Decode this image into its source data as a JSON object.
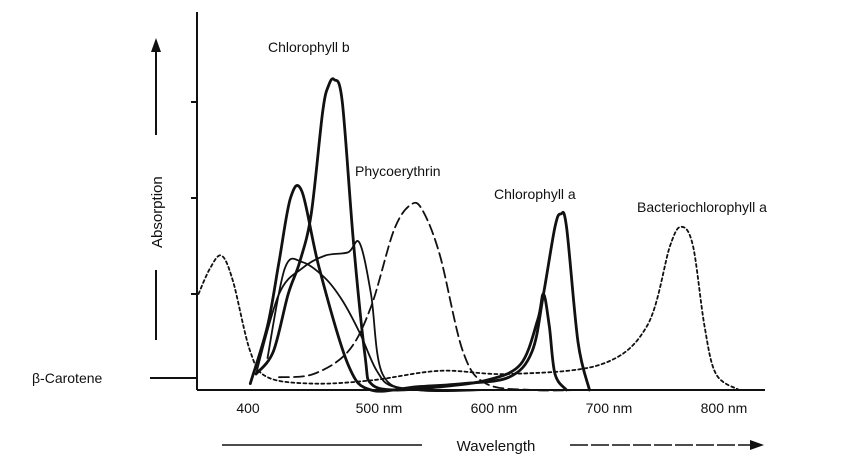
{
  "chart_data": {
    "type": "line",
    "title": "",
    "xlabel": "Wavelength",
    "ylabel": "Absorption",
    "x_ticks": [
      "400",
      "500 nm",
      "600 nm",
      "700 nm",
      "800 nm"
    ],
    "x_tick_values": [
      400,
      500,
      600,
      700,
      800
    ],
    "xlim": [
      350,
      900
    ],
    "ylim": [
      0,
      1
    ],
    "y_units": "relative absorption (axis unlabeled)",
    "y_tick_values": [
      0.3,
      0.6,
      0.9
    ],
    "grid": false,
    "legend": "none (curves labeled directly)",
    "series": [
      {
        "name": "Chlorophyll b",
        "style": "solid",
        "x": [
          400,
          415,
          428,
          438,
          448,
          458,
          463,
          468,
          475,
          485,
          495,
          500,
          520,
          560,
          600,
          630,
          645,
          650,
          655,
          660,
          670
        ],
        "y": [
          0.05,
          0.12,
          0.3,
          0.4,
          0.55,
          0.87,
          0.95,
          0.97,
          0.9,
          0.45,
          0.1,
          0.02,
          0.0,
          0.01,
          0.03,
          0.08,
          0.22,
          0.3,
          0.2,
          0.05,
          0.0
        ]
      },
      {
        "name": "Chlorophyll a",
        "style": "solid",
        "x": [
          395,
          410,
          420,
          430,
          440,
          455,
          480,
          500,
          540,
          580,
          620,
          640,
          650,
          660,
          665,
          670,
          680,
          690
        ],
        "y": [
          0.02,
          0.2,
          0.4,
          0.6,
          0.62,
          0.38,
          0.08,
          0.0,
          0.01,
          0.02,
          0.04,
          0.12,
          0.3,
          0.51,
          0.55,
          0.51,
          0.15,
          0.0
        ]
      },
      {
        "name": "Phycoerythrin",
        "style": "dashed",
        "x": [
          420,
          450,
          480,
          500,
          520,
          535,
          545,
          560,
          580,
          600,
          640,
          680
        ],
        "y": [
          0.04,
          0.05,
          0.12,
          0.26,
          0.5,
          0.58,
          0.56,
          0.42,
          0.12,
          0.02,
          0.0,
          0.0
        ]
      },
      {
        "name": "Bacteriochlorophyll a",
        "style": "dotted",
        "x": [
          350,
          360,
          370,
          380,
          395,
          410,
          450,
          500,
          560,
          620,
          700,
          740,
          760,
          770,
          780,
          790,
          800,
          820
        ],
        "y": [
          0.3,
          0.38,
          0.42,
          0.34,
          0.12,
          0.04,
          0.02,
          0.03,
          0.06,
          0.05,
          0.08,
          0.2,
          0.45,
          0.51,
          0.45,
          0.2,
          0.05,
          0.0
        ]
      },
      {
        "name": "",
        "style": "solid",
        "x": [
          400,
          420,
          440,
          460,
          480,
          490,
          500,
          510,
          540,
          600
        ],
        "y": [
          0.05,
          0.3,
          0.38,
          0.42,
          0.43,
          0.46,
          0.3,
          0.05,
          0.0,
          0.0
        ]
      },
      {
        "name": "",
        "style": "solid",
        "x": [
          410,
          425,
          440,
          460,
          475,
          490,
          505,
          520,
          560
        ],
        "y": [
          0.1,
          0.38,
          0.4,
          0.35,
          0.28,
          0.18,
          0.06,
          0.01,
          0.0
        ]
      }
    ],
    "annotations": [
      {
        "text": "Chlorophyll b",
        "series": "Chlorophyll b"
      },
      {
        "text": "Phycoerythrin",
        "series": "Phycoerythrin"
      },
      {
        "text": "Chlorophyll a",
        "series": "Chlorophyll a"
      },
      {
        "text": "Bacteriochlorophyll a",
        "series": "Bacteriochlorophyll a"
      },
      {
        "text": "β-Carotene",
        "note": "baseline marker at left"
      }
    ]
  }
}
